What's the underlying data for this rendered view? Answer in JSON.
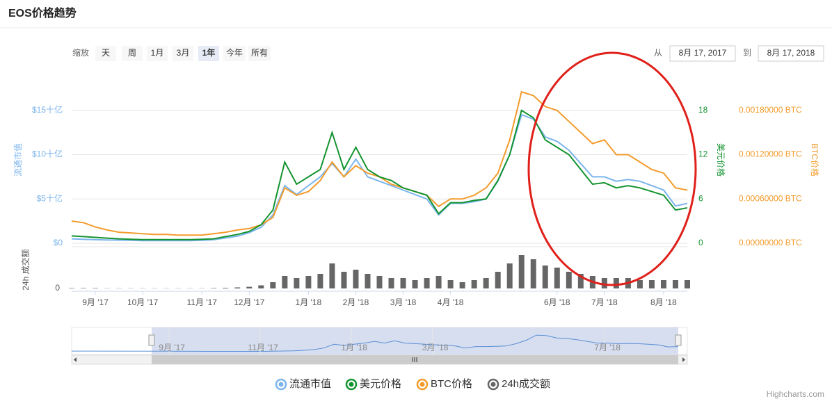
{
  "chart_data": {
    "type": "line",
    "title": "EOS价格趋势",
    "range_selector": {
      "label": "缩放",
      "buttons": [
        "天",
        "周",
        "1月",
        "3月",
        "1年",
        "今年",
        "所有"
      ],
      "from_label": "从",
      "from": "8月 17, 2017",
      "to_label": "到",
      "to": "8月 17, 2018"
    },
    "categories": [
      null,
      null,
      "9月 '17",
      null,
      null,
      null,
      "10月 '17",
      null,
      null,
      null,
      null,
      "11月 '17",
      null,
      null,
      null,
      "12月 '17",
      null,
      null,
      null,
      null,
      "1月 '18",
      null,
      null,
      null,
      "2月 '18",
      null,
      null,
      null,
      "3月 '18",
      null,
      null,
      null,
      "4月 '18",
      null,
      null,
      null,
      null,
      null,
      null,
      null,
      null,
      "6月 '18",
      null,
      null,
      null,
      "7月 '18",
      null,
      null,
      null,
      null,
      "8月 '18",
      null,
      null
    ],
    "y_title": "流通市值",
    "ylim": [
      0,
      20
    ],
    "yticks": [
      {
        "value": 0,
        "label": "$0"
      },
      {
        "value": 5,
        "label": "$5十亿"
      },
      {
        "value": 10,
        "label": "$10十亿"
      },
      {
        "value": 15,
        "label": "$15十亿"
      }
    ],
    "y2_title": "美元价格",
    "y2lim": [
      0,
      24
    ],
    "y2ticks": [
      0,
      6,
      12,
      18
    ],
    "y3_title": "BTC价格",
    "y3lim": [
      0,
      0.0024
    ],
    "y3ticks": [
      {
        "value": 0,
        "label": "0.00000000 BTC"
      },
      {
        "value": 0.0006,
        "label": "0.00060000 BTC"
      },
      {
        "value": 0.0012,
        "label": "0.00120000 BTC"
      },
      {
        "value": 0.0018,
        "label": "0.00180000 BTC"
      }
    ],
    "volume_title": "24h 成交额",
    "volume_lim": [
      0,
      2
    ],
    "volume_ticks": [
      0
    ],
    "grid": true,
    "series": [
      {
        "name": "流通市值",
        "type": "line",
        "axis": "y",
        "color": "#7cb5ec",
        "values": [
          0.5,
          0.45,
          0.4,
          0.38,
          0.35,
          0.33,
          0.3,
          0.3,
          0.3,
          0.3,
          0.3,
          0.33,
          0.4,
          0.6,
          0.8,
          1.2,
          1.8,
          3.2,
          6.5,
          5.5,
          6.5,
          7.5,
          9,
          7.5,
          9.5,
          7.5,
          7,
          6.5,
          6,
          5.5,
          5,
          3.2,
          4.5,
          4.5,
          4.7,
          5,
          7,
          10,
          14.5,
          14,
          12,
          11.5,
          10.5,
          9,
          7.5,
          7.5,
          7,
          7.2,
          7,
          6.5,
          6,
          4.2,
          4.5
        ]
      },
      {
        "name": "美元价格",
        "type": "line",
        "axis": "y2",
        "color": "#13932f",
        "values": [
          1.0,
          0.9,
          0.8,
          0.7,
          0.6,
          0.55,
          0.5,
          0.5,
          0.5,
          0.5,
          0.5,
          0.55,
          0.6,
          0.9,
          1.2,
          1.6,
          2.5,
          4.5,
          11,
          8,
          9,
          10,
          15,
          10,
          13,
          10,
          9,
          8.5,
          7.5,
          7,
          6.5,
          4,
          5.5,
          5.5,
          5.8,
          6,
          8.5,
          12,
          18,
          17,
          14,
          13,
          12,
          10,
          8,
          8.2,
          7.5,
          7.8,
          7.5,
          7,
          6.5,
          4.5,
          4.8
        ]
      },
      {
        "name": "BTC价格",
        "type": "line",
        "axis": "y3",
        "color": "#f39c2c",
        "values": [
          0.0003,
          0.00028,
          0.00022,
          0.00018,
          0.00015,
          0.00014,
          0.00013,
          0.00012,
          0.00012,
          0.00011,
          0.00011,
          0.00011,
          0.00013,
          0.00015,
          0.00018,
          0.0002,
          0.00025,
          0.00035,
          0.00075,
          0.00065,
          0.0007,
          0.00085,
          0.0011,
          0.0009,
          0.00105,
          0.00095,
          0.0009,
          0.0008,
          0.00075,
          0.0007,
          0.00065,
          0.0005,
          0.0006,
          0.0006,
          0.00065,
          0.00075,
          0.00095,
          0.0014,
          0.00205,
          0.002,
          0.00185,
          0.0018,
          0.00165,
          0.0015,
          0.00135,
          0.0014,
          0.0012,
          0.0012,
          0.0011,
          0.001,
          0.00095,
          0.00075,
          0.00072
        ]
      },
      {
        "name": "24h成交额",
        "type": "column",
        "axis": "volume",
        "color": "#666666",
        "values": [
          0.02,
          0.02,
          0.02,
          0.01,
          0.01,
          0.01,
          0.01,
          0.01,
          0.01,
          0.01,
          0.01,
          0.01,
          0.02,
          0.03,
          0.05,
          0.08,
          0.15,
          0.3,
          0.6,
          0.5,
          0.6,
          0.7,
          1.2,
          0.8,
          0.9,
          0.7,
          0.6,
          0.5,
          0.5,
          0.4,
          0.5,
          0.6,
          0.4,
          0.3,
          0.4,
          0.5,
          0.8,
          1.2,
          1.6,
          1.4,
          1.1,
          1.0,
          0.8,
          0.7,
          0.6,
          0.5,
          0.5,
          0.5,
          0.4,
          0.4,
          0.4,
          0.4,
          0.4
        ]
      }
    ],
    "navigator": {
      "categories": [
        null,
        null,
        "9月 '17",
        null,
        null,
        null,
        null,
        null,
        null,
        null,
        null,
        "11月 '17",
        null,
        null,
        null,
        null,
        null,
        null,
        null,
        null,
        "1月 '18",
        null,
        null,
        null,
        null,
        null,
        null,
        null,
        "3月 '18",
        null,
        null,
        null,
        null,
        null,
        null,
        null,
        null,
        null,
        null,
        null,
        null,
        null,
        null,
        null,
        null,
        "7月 '18",
        null,
        null,
        null,
        null,
        null,
        null,
        null
      ]
    },
    "credits": "Highcharts.com"
  }
}
